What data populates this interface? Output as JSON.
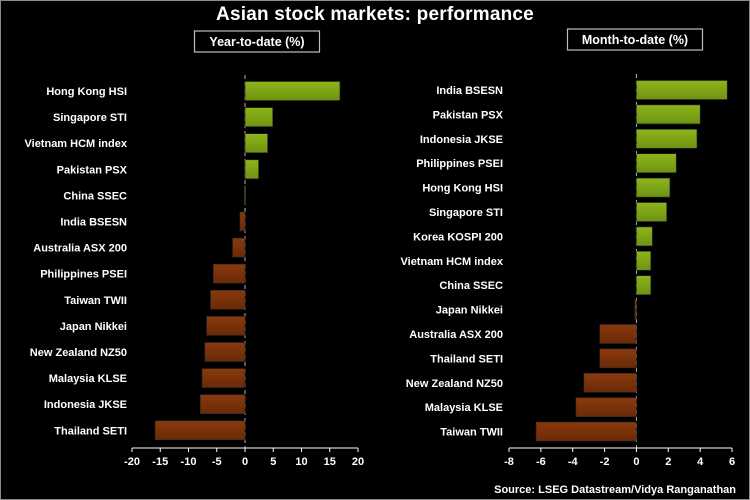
{
  "title": "Asian stock markets: performance",
  "source": "Source: LSEG Datastream/Vidya Ranganathan",
  "colors": {
    "positive": "#8db51a",
    "positive_dark": "#6f9312",
    "negative": "#8a3a0c",
    "negative_dark": "#6a2a07",
    "background": "#000000"
  },
  "chart_data": [
    {
      "type": "bar",
      "orientation": "horizontal",
      "title": "Year-to-date (%)",
      "categories": [
        "Hong Kong HSI",
        "Singapore STI",
        "Vietnam HCM index",
        "Pakistan PSX",
        "China SSEC",
        "India BSESN",
        "Australia ASX 200",
        "Philippines PSEI",
        "Taiwan TWII",
        "Japan Nikkei",
        "New Zealand NZ50",
        "Malaysia KLSE",
        "Indonesia JKSE",
        "Thailand SETI"
      ],
      "values": [
        16.8,
        4.9,
        4.0,
        2.4,
        0.1,
        -0.9,
        -2.2,
        -5.6,
        -6.1,
        -6.8,
        -7.1,
        -7.6,
        -7.9,
        -15.9
      ],
      "xlim": [
        -20,
        20
      ],
      "ticks": [
        -20,
        -15,
        -10,
        -5,
        0,
        5,
        10,
        15,
        20
      ],
      "xlabel": "",
      "ylabel": ""
    },
    {
      "type": "bar",
      "orientation": "horizontal",
      "title": "Month-to-date (%)",
      "categories": [
        "India BSESN",
        "Pakistan PSX",
        "Indonesia JKSE",
        "Philippines PSEI",
        "Hong Kong HSI",
        "Singapore STI",
        "Korea KOSPI 200",
        "Vietnam HCM index",
        "China SSEC",
        "Japan Nikkei",
        "Australia ASX 200",
        "Thailand SETI",
        "New Zealand NZ50",
        "Malaysia KLSE",
        "Taiwan TWII"
      ],
      "values": [
        5.7,
        4.0,
        3.8,
        2.5,
        2.1,
        1.9,
        1.0,
        0.9,
        0.9,
        -0.1,
        -2.3,
        -2.3,
        -3.3,
        -3.8,
        -6.3
      ],
      "xlim": [
        -8,
        6
      ],
      "ticks": [
        -8,
        -6,
        -4,
        -2,
        0,
        2,
        4,
        6
      ],
      "xlabel": "",
      "ylabel": ""
    }
  ]
}
